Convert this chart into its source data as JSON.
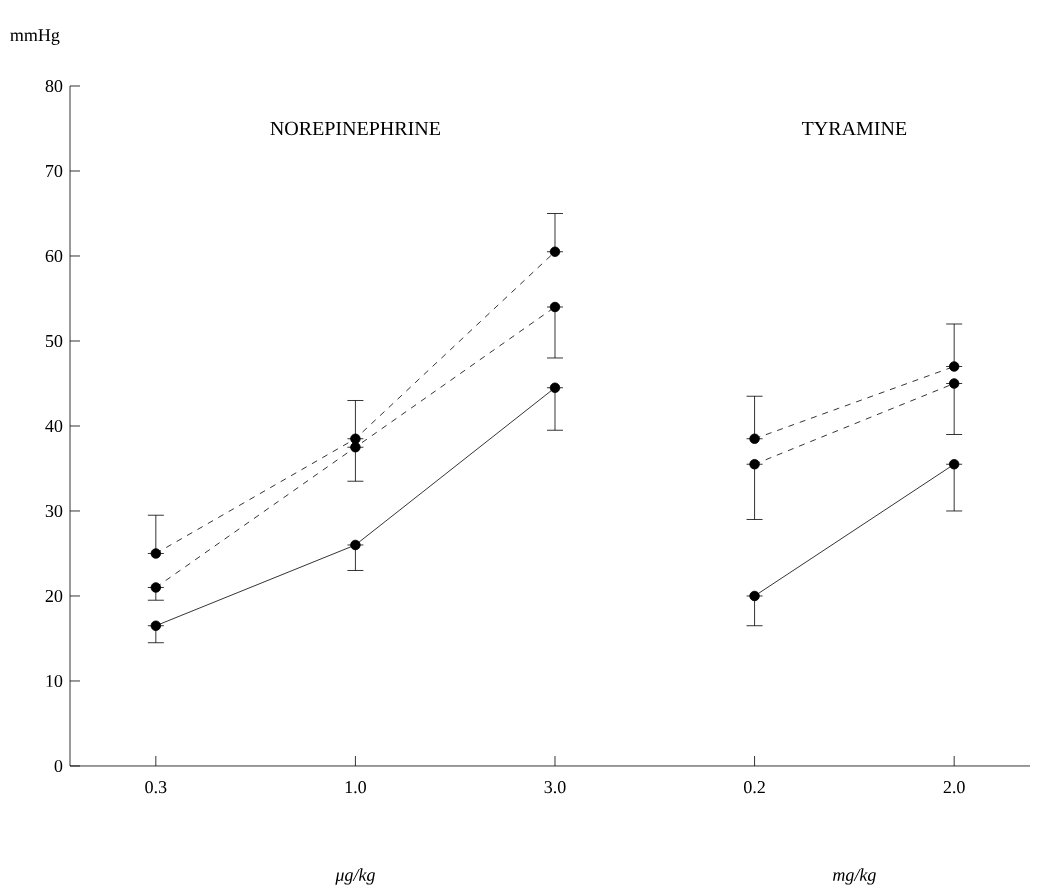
{
  "chart_data": {
    "type": "line",
    "ylabel": "mmHg",
    "categories": [
      "0.3",
      "1.0",
      "3.0",
      "0.2",
      "2.0"
    ],
    "ylim": [
      0,
      80
    ],
    "yticks": [
      0,
      10,
      20,
      30,
      40,
      50,
      60,
      70,
      80
    ],
    "marker": "circle",
    "annotations": [
      "NOREPINEPHRINE",
      "TYRAMINE",
      "μg/kg",
      "mg/kg"
    ],
    "series": [
      {
        "color": "#000000",
        "line_style": "dashed",
        "values": [
          25,
          38.5,
          60.5,
          null,
          null
        ],
        "errors": [
          [
            25,
            29.5
          ],
          [
            38.5,
            43
          ],
          [
            60.5,
            65
          ],
          null,
          null
        ]
      },
      {
        "color": "#000000",
        "line_style": "dashed",
        "values": [
          21,
          37.5,
          54,
          null,
          null
        ],
        "errors": [
          [
            19.5,
            21
          ],
          [
            33.5,
            37.5
          ],
          [
            48,
            54
          ],
          null,
          null
        ]
      },
      {
        "color": "#000000",
        "line_style": "solid",
        "values": [
          16.5,
          26,
          44.5,
          null,
          null
        ],
        "errors": [
          [
            14.5,
            16.5
          ],
          [
            23,
            26
          ],
          [
            39.5,
            44.5
          ],
          null,
          null
        ]
      },
      {
        "color": "#000000",
        "line_style": "dashed",
        "values": [
          null,
          null,
          null,
          38.5,
          47
        ],
        "errors": [
          null,
          null,
          null,
          [
            38.5,
            43.5
          ],
          [
            47,
            52
          ]
        ]
      },
      {
        "color": "#000000",
        "line_style": "dashed",
        "values": [
          null,
          null,
          null,
          35.5,
          45
        ],
        "errors": [
          null,
          null,
          null,
          [
            29,
            35.5
          ],
          [
            39,
            45
          ]
        ]
      },
      {
        "color": "#000000",
        "line_style": "solid",
        "values": [
          null,
          null,
          null,
          20,
          35.5
        ],
        "errors": [
          null,
          null,
          null,
          [
            16.5,
            20
          ],
          [
            30,
            35.5
          ]
        ]
      }
    ]
  }
}
